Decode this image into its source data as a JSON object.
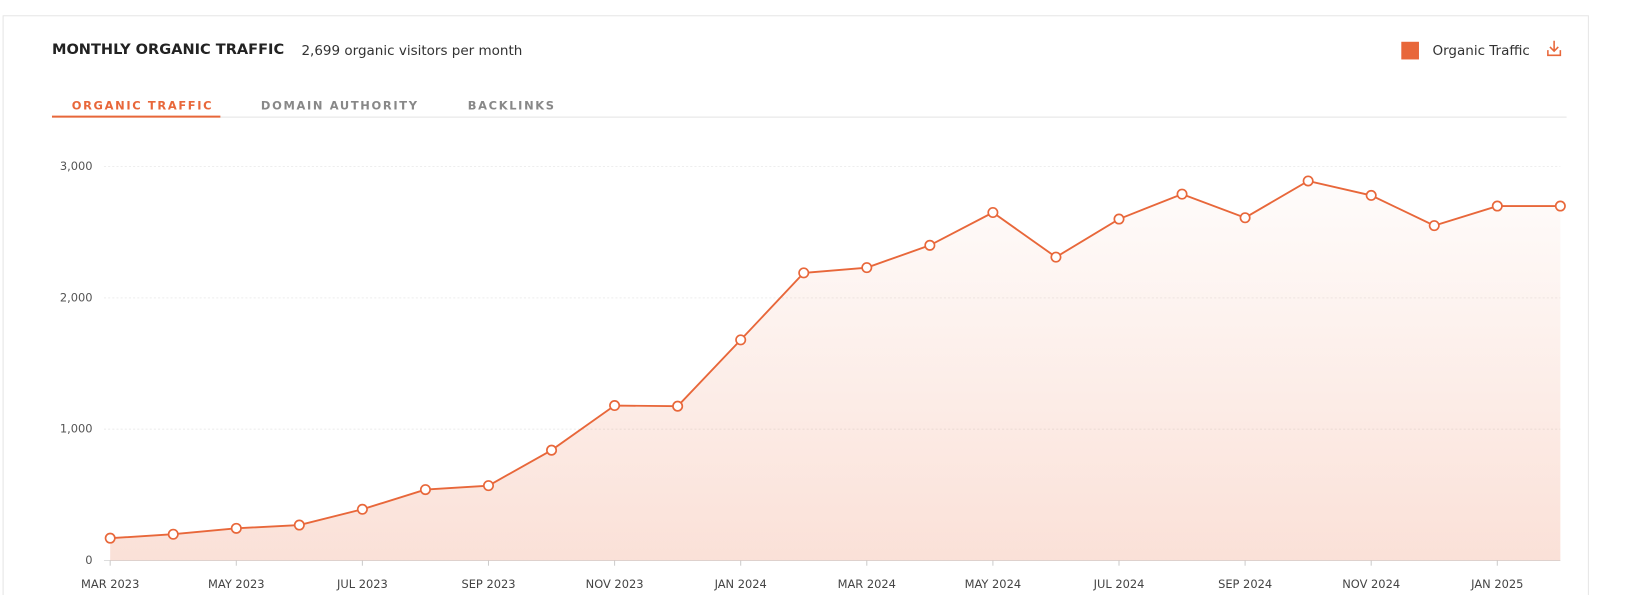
{
  "tabs": [
    "ORGANIC TRAFFIC",
    "DOMAIN AUTHORITY",
    "BACKLINKS"
  ],
  "chart_data": {
    "type": "line",
    "title": "MONTHLY ORGANIC TRAFFIC",
    "subtitle": "2,699 organic visitors per month",
    "categories": [
      "MAR 2023",
      null,
      "MAY 2023",
      null,
      "JUL 2023",
      null,
      "SEP 2023",
      null,
      "NOV 2023",
      null,
      "JAN 2024",
      null,
      "MAR 2024",
      null,
      "MAY 2024",
      null,
      "JUL 2024",
      null,
      "SEP 2024",
      null,
      "NOV 2024",
      null,
      "JAN 2025",
      null
    ],
    "series": [
      {
        "name": "Organic Traffic",
        "color": "#e8673a",
        "values": [
          170,
          200,
          245,
          270,
          390,
          540,
          570,
          840,
          1180,
          1175,
          1680,
          2190,
          2230,
          2400,
          2650,
          2310,
          2600,
          2790,
          2610,
          2890,
          2780,
          2550,
          2699,
          2699
        ]
      }
    ],
    "ylim": [
      0,
      3000
    ],
    "yticks": [
      0,
      {
        "value": 1000,
        "label": "1,000"
      },
      {
        "value": 2000,
        "label": "2,000"
      },
      {
        "value": 3000,
        "label": "3,000"
      }
    ],
    "grid": true,
    "legend": "top-right"
  }
}
